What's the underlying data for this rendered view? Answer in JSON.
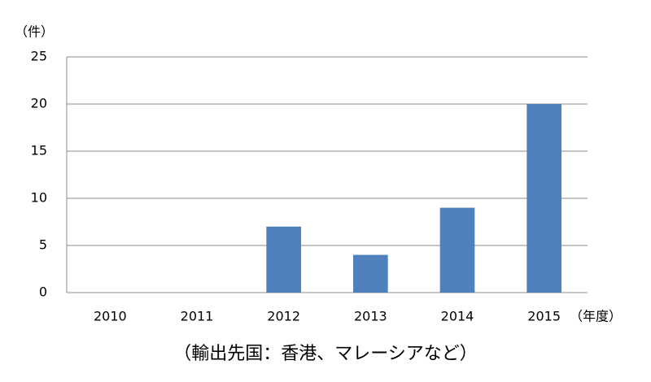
{
  "chart_data": {
    "type": "bar",
    "y_axis_label": "（件）",
    "x_axis_label": "（年度）",
    "caption": "（輸出先国：香港、マレーシアなど）",
    "categories": [
      "2010",
      "2011",
      "2012",
      "2013",
      "2014",
      "2015"
    ],
    "values": [
      0,
      0,
      7,
      4,
      9,
      20
    ],
    "color": "#4f81bd",
    "ylim": [
      0,
      25
    ],
    "yticks": [
      0,
      5,
      10,
      15,
      20,
      25
    ],
    "grid": true
  }
}
